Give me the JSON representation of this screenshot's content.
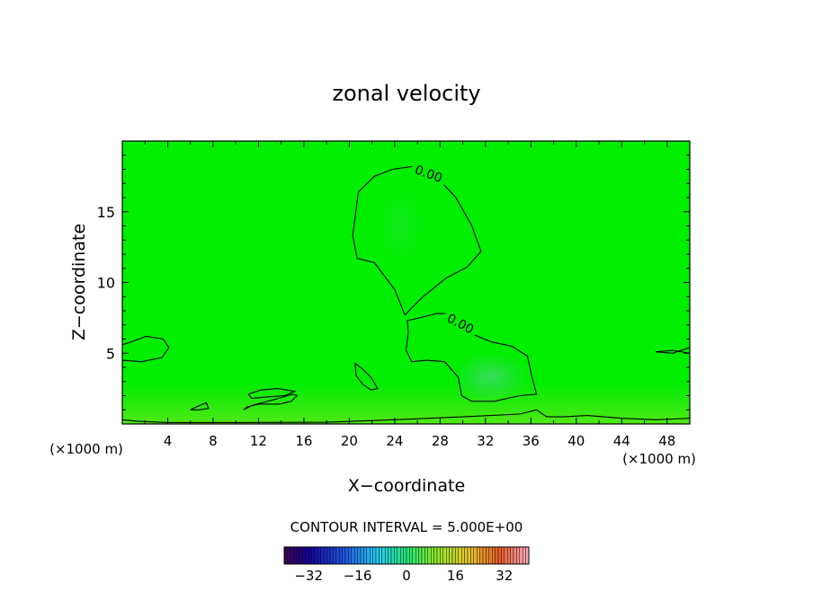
{
  "chart_data": {
    "type": "heatmap",
    "title": "zonal velocity",
    "xlabel": "X−coordinate",
    "ylabel": "Z−coordinate",
    "x_unit_left": "(×1000 m)",
    "x_unit_right": "(×1000 m)",
    "xlim": [
      0,
      50
    ],
    "ylim": [
      0,
      20
    ],
    "x_ticks": [
      4,
      8,
      12,
      16,
      20,
      24,
      28,
      32,
      36,
      40,
      44,
      48
    ],
    "x_tick_labels": [
      "4",
      "8",
      "12",
      "16",
      "20",
      "24",
      "28",
      "32",
      "36",
      "40",
      "44",
      "48"
    ],
    "y_ticks": [
      5,
      10,
      15
    ],
    "y_tick_labels": [
      "5",
      "10",
      "15"
    ],
    "contour_interval_text": "CONTOUR INTERVAL = 5.000E+00",
    "contour_labels": [
      "0.00",
      "0.00"
    ],
    "colorbar": {
      "range": [
        -40,
        40
      ],
      "ticks": [
        -32,
        -16,
        0,
        16,
        32
      ],
      "tick_labels": [
        "−32",
        "−16",
        "0",
        "16",
        "32"
      ]
    },
    "field_color": "#00ee00",
    "zero_contours": [
      {
        "name": "upper-negative-region",
        "points": [
          [
            24.9,
            7.7
          ],
          [
            24.0,
            9.5
          ],
          [
            22.2,
            11.4
          ],
          [
            20.7,
            11.7
          ],
          [
            20.3,
            13.3
          ],
          [
            20.6,
            15.2
          ],
          [
            20.8,
            16.4
          ],
          [
            22.2,
            17.5
          ],
          [
            23.8,
            18.0
          ],
          [
            25.5,
            18.2
          ],
          [
            27.4,
            17.7
          ],
          [
            29.4,
            16.0
          ],
          [
            30.8,
            14.0
          ],
          [
            31.6,
            12.2
          ],
          [
            30.4,
            11.1
          ],
          [
            28.5,
            10.3
          ],
          [
            26.5,
            9.0
          ],
          [
            25.5,
            8.2
          ],
          [
            24.9,
            7.7
          ]
        ]
      },
      {
        "name": "middle-negative-region",
        "points": [
          [
            25.0,
            5.2
          ],
          [
            25.2,
            6.5
          ],
          [
            25.1,
            7.3
          ],
          [
            26.2,
            7.5
          ],
          [
            27.7,
            7.8
          ],
          [
            28.8,
            7.8
          ],
          [
            29.8,
            7.3
          ],
          [
            31.0,
            6.3
          ],
          [
            32.5,
            5.8
          ],
          [
            34.3,
            5.5
          ],
          [
            35.7,
            4.8
          ],
          [
            36.1,
            3.3
          ],
          [
            36.5,
            2.1
          ],
          [
            35.0,
            2.0
          ],
          [
            32.8,
            1.6
          ],
          [
            30.8,
            1.6
          ],
          [
            29.9,
            2.0
          ],
          [
            29.6,
            3.3
          ],
          [
            28.4,
            4.4
          ],
          [
            26.8,
            4.5
          ],
          [
            25.5,
            4.4
          ],
          [
            25.0,
            5.2
          ]
        ]
      },
      {
        "name": "left-lobe",
        "points": [
          [
            0,
            4.5
          ],
          [
            1.7,
            4.4
          ],
          [
            3.5,
            4.7
          ],
          [
            4.1,
            5.4
          ],
          [
            3.6,
            6.0
          ],
          [
            2.1,
            6.2
          ],
          [
            0.8,
            5.8
          ],
          [
            0,
            5.6
          ]
        ]
      },
      {
        "name": "small-blob",
        "points": [
          [
            20.5,
            4.3
          ],
          [
            21.0,
            4.0
          ],
          [
            21.9,
            3.3
          ],
          [
            22.5,
            2.5
          ],
          [
            21.9,
            2.4
          ],
          [
            21.2,
            2.8
          ],
          [
            20.6,
            3.4
          ],
          [
            20.5,
            4.3
          ]
        ]
      },
      {
        "name": "low-blob-1",
        "points": [
          [
            10.7,
            1.0
          ],
          [
            11.4,
            1.3
          ],
          [
            12.3,
            1.5
          ],
          [
            13.3,
            1.7
          ],
          [
            15.0,
            2.1
          ],
          [
            15.4,
            2.0
          ],
          [
            14.9,
            1.6
          ],
          [
            13.8,
            1.4
          ],
          [
            12.0,
            1.4
          ],
          [
            11.0,
            1.2
          ],
          [
            10.7,
            1.0
          ]
        ]
      },
      {
        "name": "low-blob-2",
        "points": [
          [
            6.0,
            1.0
          ],
          [
            6.8,
            1.3
          ],
          [
            7.4,
            1.5
          ],
          [
            7.6,
            1.1
          ],
          [
            6.8,
            1.0
          ],
          [
            6.0,
            1.0
          ]
        ]
      },
      {
        "name": "low-blob-3",
        "points": [
          [
            11.1,
            2.1
          ],
          [
            12.2,
            2.4
          ],
          [
            13.7,
            2.5
          ],
          [
            15.2,
            2.3
          ],
          [
            14.3,
            2.0
          ],
          [
            12.6,
            1.9
          ],
          [
            11.4,
            1.8
          ],
          [
            11.1,
            2.1
          ]
        ]
      },
      {
        "name": "right-lobe",
        "points": [
          [
            50,
            5.4
          ],
          [
            48.5,
            5.0
          ],
          [
            47.0,
            5.1
          ],
          [
            48.5,
            5.2
          ],
          [
            50,
            5.0
          ]
        ]
      },
      {
        "name": "surface-contour",
        "points": [
          [
            0,
            0.3
          ],
          [
            1.3,
            0.2
          ],
          [
            4,
            0.1
          ],
          [
            10,
            0.1
          ],
          [
            18,
            0.12
          ],
          [
            24,
            0.3
          ],
          [
            30,
            0.5
          ],
          [
            35,
            0.7
          ],
          [
            36.5,
            1.0
          ],
          [
            37.4,
            0.5
          ],
          [
            38.8,
            0.5
          ],
          [
            41,
            0.6
          ],
          [
            44,
            0.4
          ],
          [
            47,
            0.3
          ],
          [
            50,
            0.4
          ]
        ]
      }
    ]
  }
}
